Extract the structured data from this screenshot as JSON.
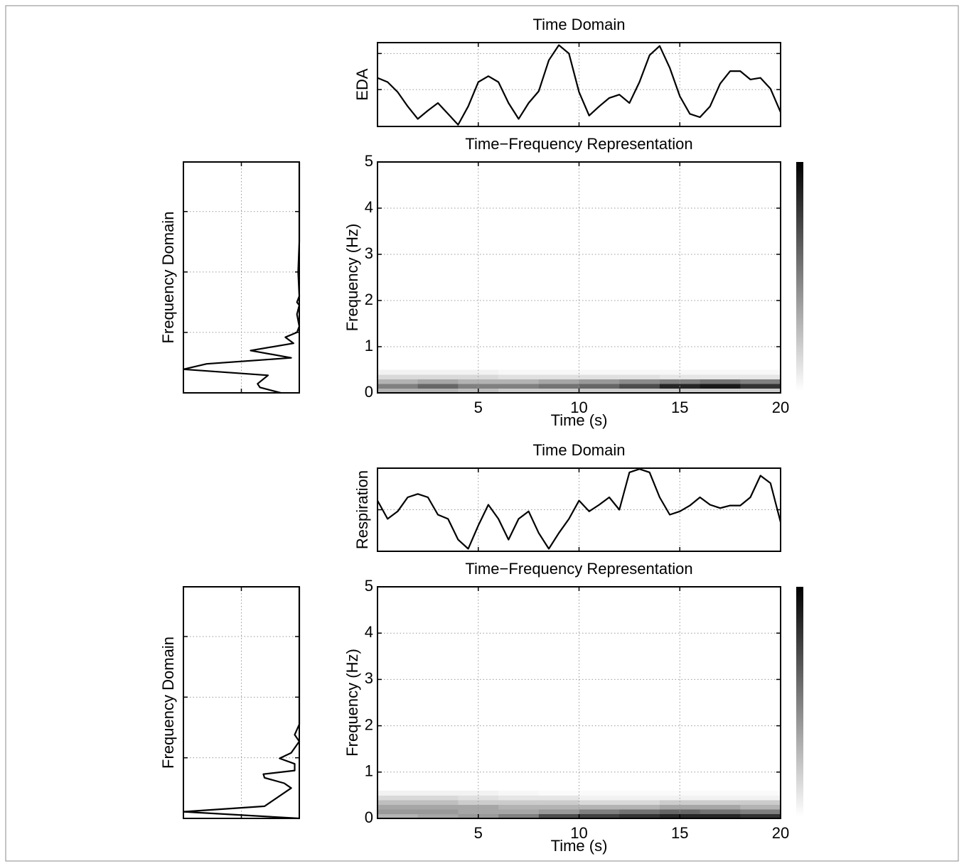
{
  "chart_data": [
    {
      "type": "line",
      "title": "Time Domain",
      "ylabel": "EDA",
      "color": "#000000",
      "x": [
        0,
        0.5,
        1,
        1.5,
        2,
        2.5,
        3,
        3.5,
        4,
        4.5,
        5,
        5.5,
        6,
        6.5,
        7,
        7.5,
        8,
        8.5,
        9,
        9.5,
        10,
        10.5,
        11,
        11.5,
        12,
        12.5,
        13,
        13.5,
        14,
        14.5,
        15,
        15.5,
        16,
        16.5,
        17,
        17.5,
        18,
        18.5,
        19,
        19.5,
        20
      ],
      "values": [
        0.58,
        0.53,
        0.41,
        0.24,
        0.09,
        0.19,
        0.28,
        0.15,
        0.02,
        0.24,
        0.53,
        0.6,
        0.53,
        0.28,
        0.09,
        0.28,
        0.42,
        0.79,
        0.97,
        0.87,
        0.41,
        0.13,
        0.24,
        0.34,
        0.38,
        0.28,
        0.53,
        0.85,
        0.96,
        0.7,
        0.36,
        0.15,
        0.11,
        0.24,
        0.51,
        0.66,
        0.66,
        0.56,
        0.58,
        0.45,
        0.17
      ],
      "xlim": [
        0,
        20
      ],
      "ylim": [
        0,
        1
      ],
      "xticks": [
        5,
        10,
        15
      ],
      "yticks": [
        0.44,
        0.87
      ],
      "grid": true,
      "tick_labels": false
    },
    {
      "type": "heatmap",
      "title": "Time−Frequency Representation",
      "xlabel": "Time (s)",
      "ylabel": "Frequency (Hz)",
      "x_bins": [
        0,
        2,
        4,
        6,
        8,
        10,
        12,
        14,
        16,
        18,
        20
      ],
      "y_bins": [
        0,
        0.1,
        0.2,
        0.3,
        0.4,
        0.5
      ],
      "z": [
        [
          0.3,
          0.3,
          0.25,
          0.2,
          0.2,
          0.2,
          0.2,
          0.2,
          0.2,
          0.2
        ],
        [
          0.5,
          0.6,
          0.5,
          0.5,
          0.55,
          0.6,
          0.7,
          0.85,
          0.9,
          0.8
        ],
        [
          0.3,
          0.35,
          0.3,
          0.3,
          0.35,
          0.4,
          0.45,
          0.5,
          0.55,
          0.5
        ],
        [
          0.15,
          0.15,
          0.15,
          0.12,
          0.12,
          0.12,
          0.12,
          0.1,
          0.1,
          0.1
        ],
        [
          0.05,
          0.05,
          0.05,
          0.03,
          0.03,
          0.03,
          0.03,
          0.03,
          0.03,
          0.03
        ]
      ],
      "colormap": "gray",
      "colorbar": true,
      "xlim": [
        0,
        20
      ],
      "ylim": [
        0,
        5
      ],
      "xticks": [
        5,
        10,
        15,
        20
      ],
      "yticks": [
        0,
        1,
        2,
        3,
        4,
        5
      ],
      "grid": true
    },
    {
      "type": "line",
      "orientation": "vertical",
      "value_axis_reversed": true,
      "ylabel": "Frequency Domain",
      "color": "#000000",
      "x": [
        0,
        0.09,
        0.15,
        0.29,
        0.39,
        0.48,
        0.58,
        0.7,
        0.82,
        0.92,
        1.0,
        1.1,
        1.3,
        1.45,
        1.5,
        1.6,
        2.0,
        2.5,
        3.0,
        3.82
      ],
      "values": [
        0.16,
        0.34,
        0.36,
        0.27,
        1.0,
        0.8,
        0.07,
        0.42,
        0.05,
        0.12,
        0.02,
        0,
        0.02,
        0,
        0.02,
        0,
        0.01,
        0,
        0,
        0
      ],
      "xlim": [
        0,
        3.82
      ],
      "ylim": [
        0,
        1
      ],
      "xticks": [
        1,
        2,
        3
      ],
      "yticks": [
        0.5
      ],
      "grid": true,
      "tick_labels": false
    },
    {
      "type": "line",
      "title": "Time Domain",
      "ylabel": "Respiration",
      "color": "#000000",
      "x": [
        0,
        0.5,
        1,
        1.5,
        2,
        2.5,
        3,
        3.5,
        4,
        4.5,
        5,
        5.5,
        6,
        6.5,
        7,
        7.5,
        8,
        8.5,
        9,
        9.5,
        10,
        10.5,
        11,
        11.5,
        12,
        12.5,
        13,
        13.5,
        14,
        14.5,
        15,
        15.5,
        16,
        16.5,
        17,
        17.5,
        18,
        18.5,
        19,
        19.5,
        20
      ],
      "values": [
        0.61,
        0.39,
        0.48,
        0.65,
        0.69,
        0.65,
        0.44,
        0.39,
        0.14,
        0.03,
        0.31,
        0.56,
        0.39,
        0.14,
        0.39,
        0.48,
        0.22,
        0.03,
        0.22,
        0.39,
        0.61,
        0.48,
        0.56,
        0.65,
        0.5,
        0.95,
        0.99,
        0.95,
        0.65,
        0.44,
        0.48,
        0.55,
        0.65,
        0.56,
        0.52,
        0.55,
        0.55,
        0.65,
        0.91,
        0.82,
        0.35
      ],
      "xlim": [
        0,
        20
      ],
      "ylim": [
        0,
        1
      ],
      "xticks": [
        5,
        10,
        15
      ],
      "yticks": [
        0.5
      ],
      "grid": true,
      "tick_labels": false
    },
    {
      "type": "heatmap",
      "title": "Time−Frequency Representation",
      "xlabel": "Time (s)",
      "ylabel": "Frequency (Hz)",
      "x_bins": [
        0,
        2,
        4,
        6,
        8,
        10,
        12,
        14,
        16,
        18,
        20
      ],
      "y_bins": [
        0,
        0.1,
        0.2,
        0.3,
        0.4,
        0.5,
        0.6
      ],
      "z": [
        [
          0.3,
          0.35,
          0.4,
          0.5,
          0.7,
          0.75,
          0.8,
          0.85,
          0.85,
          0.8
        ],
        [
          0.4,
          0.4,
          0.35,
          0.35,
          0.4,
          0.5,
          0.55,
          0.6,
          0.55,
          0.5
        ],
        [
          0.35,
          0.35,
          0.35,
          0.3,
          0.3,
          0.3,
          0.3,
          0.35,
          0.35,
          0.3
        ],
        [
          0.25,
          0.25,
          0.2,
          0.2,
          0.2,
          0.15,
          0.15,
          0.2,
          0.2,
          0.2
        ],
        [
          0.15,
          0.15,
          0.12,
          0.1,
          0.1,
          0.05,
          0.05,
          0.05,
          0.05,
          0.05
        ],
        [
          0.05,
          0.05,
          0.05,
          0.03,
          0.02,
          0.02,
          0.02,
          0.02,
          0.02,
          0.02
        ]
      ],
      "colormap": "gray",
      "colorbar": true,
      "xlim": [
        0,
        20
      ],
      "ylim": [
        0,
        5
      ],
      "xticks": [
        5,
        10,
        15,
        20
      ],
      "yticks": [
        0,
        1,
        2,
        3,
        4,
        5
      ],
      "grid": true
    },
    {
      "type": "line",
      "orientation": "vertical",
      "value_axis_reversed": true,
      "ylabel": "Frequency Domain",
      "color": "#000000",
      "x": [
        0,
        0.11,
        0.2,
        0.5,
        0.58,
        0.67,
        0.73,
        0.79,
        0.9,
        0.99,
        1.08,
        1.27,
        1.38,
        1.55,
        2.26,
        3.82
      ],
      "values": [
        0,
        1.0,
        0.3,
        0.07,
        0.13,
        0.3,
        0.31,
        0.04,
        0.04,
        0.17,
        0.07,
        0,
        0.04,
        0,
        0,
        0
      ],
      "xlim": [
        0,
        3.82
      ],
      "ylim": [
        0,
        1
      ],
      "xticks": [
        1,
        2,
        3
      ],
      "yticks": [
        0.5
      ],
      "grid": true,
      "tick_labels": false
    }
  ]
}
